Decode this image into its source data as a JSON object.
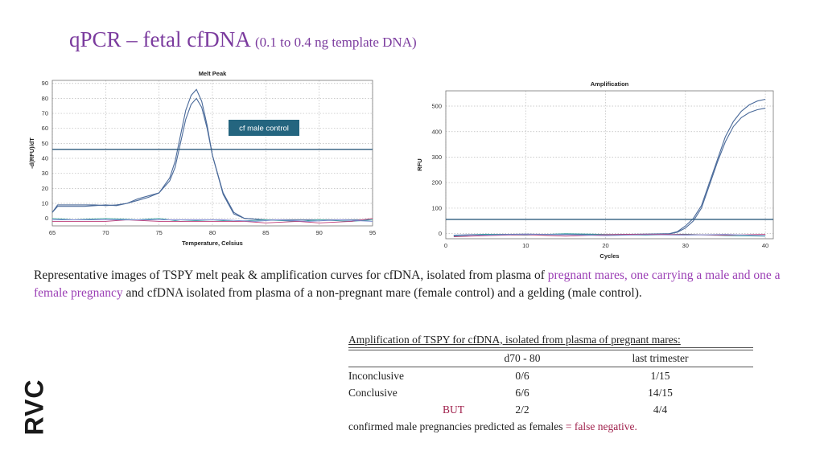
{
  "slide": {
    "title_main": "qPCR – fetal cfDNA ",
    "title_sub": "(0.1 to 0.4 ng template DNA)",
    "caption": {
      "part1": "Representative images of TSPY melt peak & amplification curves for cfDNA, isolated from plasma of ",
      "highlight": "pregnant mares, one carrying a male and one a female pregnancy",
      "part2": " and cfDNA isolated from plasma of a non-pregnant mare (female control) and a gelding (male control)."
    },
    "table": {
      "heading": "Amplification of TSPY for cfDNA, isolated from plasma of pregnant mares:",
      "columns": [
        "",
        "d70 - 80",
        "last trimester"
      ],
      "rows": [
        [
          "Inconclusive",
          "0/6",
          "1/15"
        ],
        [
          "Conclusive",
          "6/6",
          "14/15"
        ],
        [
          "BUT",
          "2/2",
          "4/4"
        ]
      ],
      "footnote_text": "confirmed male pregnancies predicted as females ",
      "footnote_eq": "=",
      "footnote_highlight": " false negative."
    },
    "logo_text": "RVC",
    "colors": {
      "title": "#7b3b9e",
      "highlight": "#9b3fb5",
      "warning": "#a0224d",
      "curve": "#4a6a9a",
      "threshold": "#2c5a7d",
      "label_box": "#24657f"
    }
  },
  "chart_data": [
    {
      "type": "line",
      "title": "Melt Peak",
      "xlabel": "Temperature, Celsius",
      "ylabel": "-d(RFU)/dT",
      "xlim": [
        65,
        95
      ],
      "ylim": [
        -5,
        92
      ],
      "x_ticks": [
        65,
        70,
        75,
        80,
        85,
        90,
        95
      ],
      "y_ticks": [
        0,
        10,
        20,
        30,
        40,
        50,
        60,
        70,
        80,
        90
      ],
      "grid": true,
      "threshold": 46,
      "annotation": "cf male control",
      "series": [
        {
          "values": [
            [
              65,
              4
            ],
            [
              65.5,
              9
            ],
            [
              67,
              9
            ],
            [
              68,
              9
            ],
            [
              69,
              9
            ],
            [
              70,
              8.5
            ],
            [
              71,
              9
            ],
            [
              72,
              10
            ],
            [
              73,
              12
            ],
            [
              74,
              14
            ],
            [
              75,
              17
            ],
            [
              76,
              27
            ],
            [
              76.5,
              38
            ],
            [
              77,
              55
            ],
            [
              77.5,
              72
            ],
            [
              78,
              82
            ],
            [
              78.5,
              86
            ],
            [
              79,
              78
            ],
            [
              79.5,
              62
            ],
            [
              80,
              42
            ],
            [
              81,
              16
            ],
            [
              82,
              3
            ],
            [
              83,
              0
            ],
            [
              85,
              -1
            ],
            [
              90,
              -1
            ],
            [
              95,
              -1
            ]
          ]
        },
        {
          "values": [
            [
              65,
              4
            ],
            [
              65.5,
              8
            ],
            [
              67,
              8
            ],
            [
              68,
              8
            ],
            [
              69,
              8.5
            ],
            [
              70,
              9
            ],
            [
              71,
              8.5
            ],
            [
              72,
              10
            ],
            [
              73,
              13
            ],
            [
              74,
              15
            ],
            [
              75,
              17
            ],
            [
              76,
              25
            ],
            [
              76.5,
              34
            ],
            [
              77,
              50
            ],
            [
              77.5,
              66
            ],
            [
              78,
              76
            ],
            [
              78.5,
              80
            ],
            [
              79,
              74
            ],
            [
              79.5,
              60
            ],
            [
              80,
              42
            ],
            [
              81,
              17
            ],
            [
              82,
              4
            ],
            [
              83,
              0
            ],
            [
              85,
              -1
            ],
            [
              90,
              -1
            ],
            [
              95,
              -1
            ]
          ]
        },
        {
          "values": [
            [
              65,
              0
            ],
            [
              67,
              -1
            ],
            [
              70,
              0
            ],
            [
              73,
              -1
            ],
            [
              75,
              0
            ],
            [
              77,
              -2
            ],
            [
              80,
              -1
            ],
            [
              82,
              -2
            ],
            [
              85,
              -1
            ],
            [
              88,
              -2
            ],
            [
              90,
              -1
            ],
            [
              93,
              -2
            ],
            [
              95,
              -1
            ]
          ]
        },
        {
          "values": [
            [
              65,
              -2
            ],
            [
              67,
              -2
            ],
            [
              70,
              -2
            ],
            [
              72,
              -1
            ],
            [
              75,
              -2
            ],
            [
              78,
              -2
            ],
            [
              80,
              -2
            ],
            [
              83,
              -2
            ],
            [
              85,
              -3
            ],
            [
              88,
              -2
            ],
            [
              90,
              -3
            ],
            [
              93,
              -2
            ],
            [
              95,
              0
            ]
          ]
        },
        {
          "values": [
            [
              65,
              -1
            ],
            [
              68,
              -1
            ],
            [
              71,
              -1
            ],
            [
              74,
              -1
            ],
            [
              76,
              -1
            ],
            [
              79,
              -1
            ],
            [
              81,
              -1
            ],
            [
              84,
              -2
            ],
            [
              86,
              -1
            ],
            [
              89,
              -2
            ],
            [
              92,
              -1
            ],
            [
              95,
              -2
            ]
          ]
        }
      ]
    },
    {
      "type": "line",
      "title": "Amplification",
      "xlabel": "Cycles",
      "ylabel": "RFU",
      "xlim": [
        0,
        41
      ],
      "ylim": [
        -20,
        560
      ],
      "x_ticks": [
        0,
        10,
        20,
        30,
        40
      ],
      "y_ticks": [
        0,
        100,
        200,
        300,
        400,
        500
      ],
      "grid": true,
      "threshold": 56,
      "series": [
        {
          "values": [
            [
              1,
              -8
            ],
            [
              5,
              -4
            ],
            [
              10,
              -2
            ],
            [
              15,
              -4
            ],
            [
              20,
              -4
            ],
            [
              25,
              -2
            ],
            [
              28,
              0
            ],
            [
              29,
              8
            ],
            [
              30,
              30
            ],
            [
              31,
              60
            ],
            [
              32,
              110
            ],
            [
              33,
              200
            ],
            [
              34,
              290
            ],
            [
              35,
              380
            ],
            [
              36,
              440
            ],
            [
              37,
              480
            ],
            [
              38,
              505
            ],
            [
              39,
              520
            ],
            [
              40,
              527
            ]
          ]
        },
        {
          "values": [
            [
              1,
              -6
            ],
            [
              5,
              -3
            ],
            [
              10,
              -4
            ],
            [
              15,
              -2
            ],
            [
              20,
              -5
            ],
            [
              25,
              -3
            ],
            [
              28,
              -1
            ],
            [
              29,
              6
            ],
            [
              30,
              22
            ],
            [
              31,
              50
            ],
            [
              32,
              100
            ],
            [
              33,
              190
            ],
            [
              34,
              280
            ],
            [
              35,
              360
            ],
            [
              36,
              420
            ],
            [
              37,
              455
            ],
            [
              38,
              475
            ],
            [
              39,
              486
            ],
            [
              40,
              492
            ]
          ]
        },
        {
          "values": [
            [
              1,
              -10
            ],
            [
              5,
              -2
            ],
            [
              10,
              -6
            ],
            [
              15,
              0
            ],
            [
              20,
              -3
            ],
            [
              25,
              -6
            ],
            [
              30,
              -2
            ],
            [
              35,
              -8
            ],
            [
              40,
              -10
            ]
          ]
        },
        {
          "values": [
            [
              1,
              -12
            ],
            [
              5,
              -8
            ],
            [
              10,
              -4
            ],
            [
              15,
              -10
            ],
            [
              20,
              -4
            ],
            [
              25,
              -2
            ],
            [
              30,
              -4
            ],
            [
              35,
              -6
            ],
            [
              40,
              -3
            ]
          ]
        },
        {
          "values": [
            [
              1,
              -6
            ],
            [
              5,
              -6
            ],
            [
              10,
              -2
            ],
            [
              15,
              -4
            ],
            [
              20,
              -8
            ],
            [
              25,
              -4
            ],
            [
              30,
              -6
            ],
            [
              35,
              -3
            ],
            [
              40,
              -8
            ]
          ]
        }
      ]
    }
  ]
}
